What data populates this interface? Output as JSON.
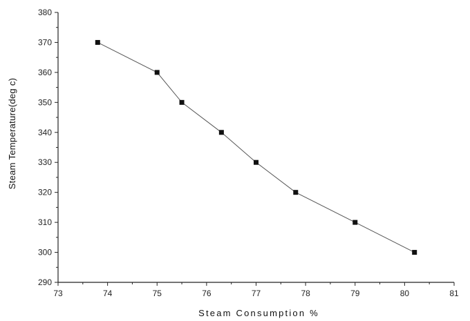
{
  "chart_data": {
    "type": "line",
    "title": "",
    "xlabel": "Steam Consumption %",
    "ylabel": "Steam Temperature(deg c)",
    "xlim": [
      73,
      81
    ],
    "ylim": [
      290,
      380
    ],
    "xticks": [
      "73",
      "74",
      "75",
      "76",
      "77",
      "78",
      "79",
      "80",
      "81"
    ],
    "yticks": [
      "290",
      "300",
      "310",
      "320",
      "330",
      "340",
      "350",
      "360",
      "370",
      "380"
    ],
    "grid": false,
    "legend": "none",
    "marker": "square",
    "series": [
      {
        "x": [
          73.8,
          75.0,
          75.5,
          76.3,
          77.0,
          77.8,
          79.0,
          80.2
        ],
        "y": [
          370,
          360,
          350,
          340,
          330,
          320,
          310,
          300
        ]
      }
    ],
    "colors": {
      "line": "#555555",
      "marker": "#111111",
      "axis": "#222222"
    }
  }
}
